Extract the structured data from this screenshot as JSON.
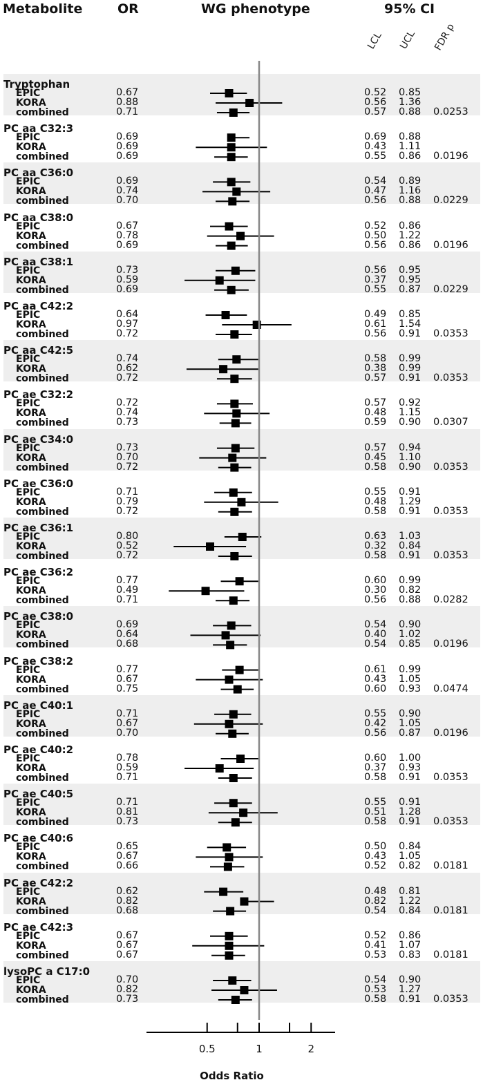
{
  "headers": {
    "metabolite": "Metabolite",
    "or": "OR",
    "phenotype": "WG phenotype",
    "ci": "95% CI",
    "lcl": "LCL",
    "ucl": "UCL",
    "fdr": "FDR p"
  },
  "colors": {
    "band": "#eeeeee",
    "marker": "#000000",
    "reference_line": "#888888"
  },
  "chart_data": {
    "type": "forest",
    "xlabel": "Odds Ratio",
    "x_scale": "log",
    "xlim": [
      0.27,
      3.0
    ],
    "reference_value": 1,
    "ticks": [
      {
        "value": 0.5,
        "label": "0.5"
      },
      {
        "value": 0.75,
        "label": ""
      },
      {
        "value": 1,
        "label": "1"
      },
      {
        "value": 1.5,
        "label": ""
      },
      {
        "value": 2,
        "label": "2"
      }
    ],
    "groups": [
      {
        "metabolite": "Tryptophan",
        "rows": [
          {
            "label": "EPIC",
            "or": "0.67",
            "lcl": "0.52",
            "ucl": "0.85",
            "fdr": ""
          },
          {
            "label": "KORA",
            "or": "0.88",
            "lcl": "0.56",
            "ucl": "1.36",
            "fdr": ""
          },
          {
            "label": "combined",
            "or": "0.71",
            "lcl": "0.57",
            "ucl": "0.88",
            "fdr": "0.0253"
          }
        ]
      },
      {
        "metabolite": "PC aa C32:3",
        "rows": [
          {
            "label": "EPIC",
            "or": "0.69",
            "lcl": "0.69",
            "ucl": "0.88",
            "fdr": ""
          },
          {
            "label": "KORA",
            "or": "0.69",
            "lcl": "0.43",
            "ucl": "1.11",
            "fdr": ""
          },
          {
            "label": "combined",
            "or": "0.69",
            "lcl": "0.55",
            "ucl": "0.86",
            "fdr": "0.0196"
          }
        ]
      },
      {
        "metabolite": "PC aa C36:0",
        "rows": [
          {
            "label": "EPIC",
            "or": "0.69",
            "lcl": "0.54",
            "ucl": "0.89",
            "fdr": ""
          },
          {
            "label": "KORA",
            "or": "0.74",
            "lcl": "0.47",
            "ucl": "1.16",
            "fdr": ""
          },
          {
            "label": "combined",
            "or": "0.70",
            "lcl": "0.56",
            "ucl": "0.88",
            "fdr": "0.0229"
          }
        ]
      },
      {
        "metabolite": "PC aa C38:0",
        "rows": [
          {
            "label": "EPIC",
            "or": "0.67",
            "lcl": "0.52",
            "ucl": "0.86",
            "fdr": ""
          },
          {
            "label": "KORA",
            "or": "0.78",
            "lcl": "0.50",
            "ucl": "1.22",
            "fdr": ""
          },
          {
            "label": "combined",
            "or": "0.69",
            "lcl": "0.56",
            "ucl": "0.86",
            "fdr": "0.0196"
          }
        ]
      },
      {
        "metabolite": "PC aa C38:1",
        "rows": [
          {
            "label": "EPIC",
            "or": "0.73",
            "lcl": "0.56",
            "ucl": "0.95",
            "fdr": ""
          },
          {
            "label": "KORA",
            "or": "0.59",
            "lcl": "0.37",
            "ucl": "0.95",
            "fdr": ""
          },
          {
            "label": "combined",
            "or": "0.69",
            "lcl": "0.55",
            "ucl": "0.87",
            "fdr": "0.0229"
          }
        ]
      },
      {
        "metabolite": "PC aa C42:2",
        "rows": [
          {
            "label": "EPIC",
            "or": "0.64",
            "lcl": "0.49",
            "ucl": "0.85",
            "fdr": ""
          },
          {
            "label": "KORA",
            "or": "0.97",
            "lcl": "0.61",
            "ucl": "1.54",
            "fdr": ""
          },
          {
            "label": "combined",
            "or": "0.72",
            "lcl": "0.56",
            "ucl": "0.91",
            "fdr": "0.0353"
          }
        ]
      },
      {
        "metabolite": "PC aa C42:5",
        "rows": [
          {
            "label": "EPIC",
            "or": "0.74",
            "lcl": "0.58",
            "ucl": "0.99",
            "fdr": ""
          },
          {
            "label": "KORA",
            "or": "0.62",
            "lcl": "0.38",
            "ucl": "0.99",
            "fdr": ""
          },
          {
            "label": "combined",
            "or": "0.72",
            "lcl": "0.57",
            "ucl": "0.91",
            "fdr": "0.0353"
          }
        ]
      },
      {
        "metabolite": "PC ae C32:2",
        "rows": [
          {
            "label": "EPIC",
            "or": "0.72",
            "lcl": "0.57",
            "ucl": "0.92",
            "fdr": ""
          },
          {
            "label": "KORA",
            "or": "0.74",
            "lcl": "0.48",
            "ucl": "1.15",
            "fdr": ""
          },
          {
            "label": "combined",
            "or": "0.73",
            "lcl": "0.59",
            "ucl": "0.90",
            "fdr": "0.0307"
          }
        ]
      },
      {
        "metabolite": "PC ae C34:0",
        "rows": [
          {
            "label": "EPIC",
            "or": "0.73",
            "lcl": "0.57",
            "ucl": "0.94",
            "fdr": ""
          },
          {
            "label": "KORA",
            "or": "0.70",
            "lcl": "0.45",
            "ucl": "1.10",
            "fdr": ""
          },
          {
            "label": "combined",
            "or": "0.72",
            "lcl": "0.58",
            "ucl": "0.90",
            "fdr": "0.0353"
          }
        ]
      },
      {
        "metabolite": "PC ae C36:0",
        "rows": [
          {
            "label": "EPIC",
            "or": "0.71",
            "lcl": "0.55",
            "ucl": "0.91",
            "fdr": ""
          },
          {
            "label": "KORA",
            "or": "0.79",
            "lcl": "0.48",
            "ucl": "1.29",
            "fdr": ""
          },
          {
            "label": "combined",
            "or": "0.72",
            "lcl": "0.58",
            "ucl": "0.91",
            "fdr": "0.0353"
          }
        ]
      },
      {
        "metabolite": "PC ae C36:1",
        "rows": [
          {
            "label": "EPIC",
            "or": "0.80",
            "lcl": "0.63",
            "ucl": "1.03",
            "fdr": ""
          },
          {
            "label": "KORA",
            "or": "0.52",
            "lcl": "0.32",
            "ucl": "0.84",
            "fdr": ""
          },
          {
            "label": "combined",
            "or": "0.72",
            "lcl": "0.58",
            "ucl": "0.91",
            "fdr": "0.0353"
          }
        ]
      },
      {
        "metabolite": "PC ae C36:2",
        "rows": [
          {
            "label": "EPIC",
            "or": "0.77",
            "lcl": "0.60",
            "ucl": "0.99",
            "fdr": ""
          },
          {
            "label": "KORA",
            "or": "0.49",
            "lcl": "0.30",
            "ucl": "0.82",
            "fdr": ""
          },
          {
            "label": "combined",
            "or": "0.71",
            "lcl": "0.56",
            "ucl": "0.88",
            "fdr": "0.0282"
          }
        ]
      },
      {
        "metabolite": "PC ae C38:0",
        "rows": [
          {
            "label": "EPIC",
            "or": "0.69",
            "lcl": "0.54",
            "ucl": "0.90",
            "fdr": ""
          },
          {
            "label": "KORA",
            "or": "0.64",
            "lcl": "0.40",
            "ucl": "1.02",
            "fdr": ""
          },
          {
            "label": "combined",
            "or": "0.68",
            "lcl": "0.54",
            "ucl": "0.85",
            "fdr": "0.0196"
          }
        ]
      },
      {
        "metabolite": "PC ae C38:2",
        "rows": [
          {
            "label": "EPIC",
            "or": "0.77",
            "lcl": "0.61",
            "ucl": "0.99",
            "fdr": ""
          },
          {
            "label": "KORA",
            "or": "0.67",
            "lcl": "0.43",
            "ucl": "1.05",
            "fdr": ""
          },
          {
            "label": "combined",
            "or": "0.75",
            "lcl": "0.60",
            "ucl": "0.93",
            "fdr": "0.0474"
          }
        ]
      },
      {
        "metabolite": "PC ae C40:1",
        "rows": [
          {
            "label": "EPIC",
            "or": "0.71",
            "lcl": "0.55",
            "ucl": "0.90",
            "fdr": ""
          },
          {
            "label": "KORA",
            "or": "0.67",
            "lcl": "0.42",
            "ucl": "1.05",
            "fdr": ""
          },
          {
            "label": "combined",
            "or": "0.70",
            "lcl": "0.56",
            "ucl": "0.87",
            "fdr": "0.0196"
          }
        ]
      },
      {
        "metabolite": "PC ae C40:2",
        "rows": [
          {
            "label": "EPIC",
            "or": "0.78",
            "lcl": "0.60",
            "ucl": "1.00",
            "fdr": ""
          },
          {
            "label": "KORA",
            "or": "0.59",
            "lcl": "0.37",
            "ucl": "0.93",
            "fdr": ""
          },
          {
            "label": "combined",
            "or": "0.71",
            "lcl": "0.58",
            "ucl": "0.91",
            "fdr": "0.0353"
          }
        ]
      },
      {
        "metabolite": "PC ae C40:5",
        "rows": [
          {
            "label": "EPIC",
            "or": "0.71",
            "lcl": "0.55",
            "ucl": "0.91",
            "fdr": ""
          },
          {
            "label": "KORA",
            "or": "0.81",
            "lcl": "0.51",
            "ucl": "1.28",
            "fdr": ""
          },
          {
            "label": "combined",
            "or": "0.73",
            "lcl": "0.58",
            "ucl": "0.91",
            "fdr": "0.0353"
          }
        ]
      },
      {
        "metabolite": "PC ae C40:6",
        "rows": [
          {
            "label": "EPIC",
            "or": "0.65",
            "lcl": "0.50",
            "ucl": "0.84",
            "fdr": ""
          },
          {
            "label": "KORA",
            "or": "0.67",
            "lcl": "0.43",
            "ucl": "1.05",
            "fdr": ""
          },
          {
            "label": "combined",
            "or": "0.66",
            "lcl": "0.52",
            "ucl": "0.82",
            "fdr": "0.0181"
          }
        ]
      },
      {
        "metabolite": "PC ae C42:2",
        "rows": [
          {
            "label": "EPIC",
            "or": "0.62",
            "lcl": "0.48",
            "ucl": "0.81",
            "fdr": ""
          },
          {
            "label": "KORA",
            "or": "0.82",
            "lcl": "0.82",
            "ucl": "1.22",
            "fdr": ""
          },
          {
            "label": "combined",
            "or": "0.68",
            "lcl": "0.54",
            "ucl": "0.84",
            "fdr": "0.0181"
          }
        ]
      },
      {
        "metabolite": "PC ae C42:3",
        "rows": [
          {
            "label": "EPIC",
            "or": "0.67",
            "lcl": "0.52",
            "ucl": "0.86",
            "fdr": ""
          },
          {
            "label": "KORA",
            "or": "0.67",
            "lcl": "0.41",
            "ucl": "1.07",
            "fdr": ""
          },
          {
            "label": "combined",
            "or": "0.67",
            "lcl": "0.53",
            "ucl": "0.83",
            "fdr": "0.0181"
          }
        ]
      },
      {
        "metabolite": "lysoPC a C17:0",
        "rows": [
          {
            "label": "EPIC",
            "or": "0.70",
            "lcl": "0.54",
            "ucl": "0.90",
            "fdr": ""
          },
          {
            "label": "KORA",
            "or": "0.82",
            "lcl": "0.53",
            "ucl": "1.27",
            "fdr": ""
          },
          {
            "label": "combined",
            "or": "0.73",
            "lcl": "0.58",
            "ucl": "0.91",
            "fdr": "0.0353"
          }
        ]
      }
    ]
  }
}
